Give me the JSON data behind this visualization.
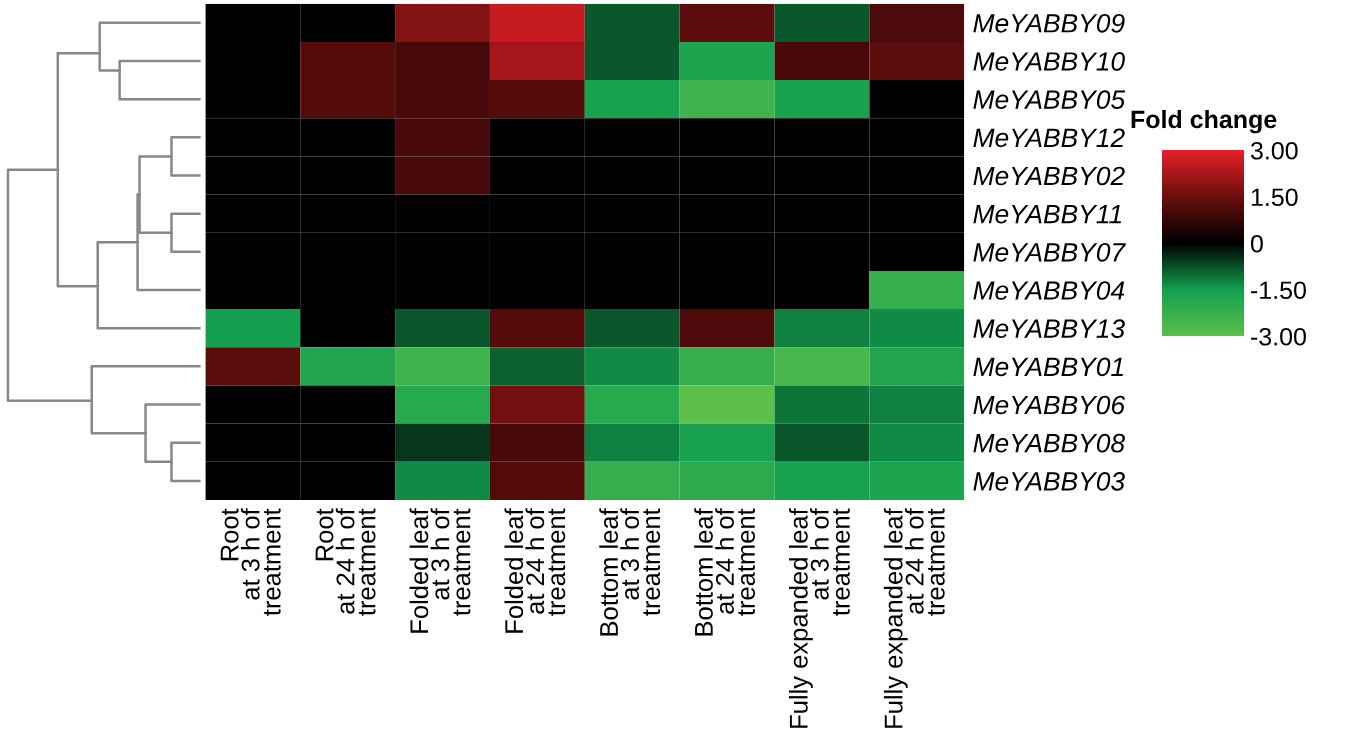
{
  "chart_data": {
    "type": "heatmap",
    "clabel": "Fold change",
    "categories": [
      "Root\nat 3 h of\ntreatment",
      "Root\nat 24 h of\ntreatment",
      "Folded leaf\nat 3 h of\ntreatment",
      "Folded leaf\nat 24 h of\ntreatment",
      "Bottom leaf\nat 3 h of\ntreatment",
      "Bottom leaf\nat 24 h of\ntreatment",
      "Fully expanded leaf\nat 3 h of\ntreatment",
      "Fully expanded leaf\nat 24 h of\ntreatment"
    ],
    "y_categories": [
      "MeYABBY09",
      "MeYABBY10",
      "MeYABBY05",
      "MeYABBY12",
      "MeYABBY02",
      "MeYABBY11",
      "MeYABBY07",
      "MeYABBY04",
      "MeYABBY13",
      "MeYABBY01",
      "MeYABBY06",
      "MeYABBY08",
      "MeYABBY03"
    ],
    "cells": [
      [
        0,
        0,
        1.8,
        2.6,
        -0.8,
        1.3,
        -0.8,
        1.1
      ],
      [
        0,
        1.2,
        1.0,
        2.2,
        -0.8,
        -1.7,
        1.0,
        1.3
      ],
      [
        0,
        1.2,
        1.0,
        1.2,
        -1.6,
        -2.4,
        -1.6,
        0
      ],
      [
        0,
        0,
        1.0,
        0,
        0,
        0,
        0,
        0
      ],
      [
        0,
        0,
        1.0,
        0,
        0,
        0,
        0,
        0
      ],
      [
        0,
        0,
        0,
        0,
        0,
        0,
        0,
        0
      ],
      [
        0,
        0,
        0,
        0,
        0,
        0,
        0,
        0
      ],
      [
        0,
        0,
        0,
        0,
        0,
        0,
        0,
        -2.2
      ],
      [
        -1.5,
        0,
        -0.8,
        1.2,
        -0.8,
        1.1,
        -1.2,
        -1.3
      ],
      [
        1.3,
        -1.8,
        -2.4,
        -0.9,
        -1.3,
        -2.2,
        -2.6,
        -1.8
      ],
      [
        0,
        0,
        -1.9,
        1.6,
        -1.9,
        -3.0,
        -1.1,
        -1.2
      ],
      [
        0,
        0,
        -0.5,
        1.0,
        -1.2,
        -1.6,
        -0.8,
        -1.3
      ],
      [
        0,
        0,
        -1.3,
        1.2,
        -2.2,
        -2.0,
        -1.6,
        -1.7
      ]
    ],
    "clim": [
      -3,
      3
    ],
    "cticks": [
      {
        "value": 3,
        "label": "3.00"
      },
      {
        "value": 1.5,
        "label": "1.50"
      },
      0,
      {
        "value": -1.5,
        "label": "-1.50"
      },
      {
        "value": -3,
        "label": "-3.00"
      }
    ]
  }
}
